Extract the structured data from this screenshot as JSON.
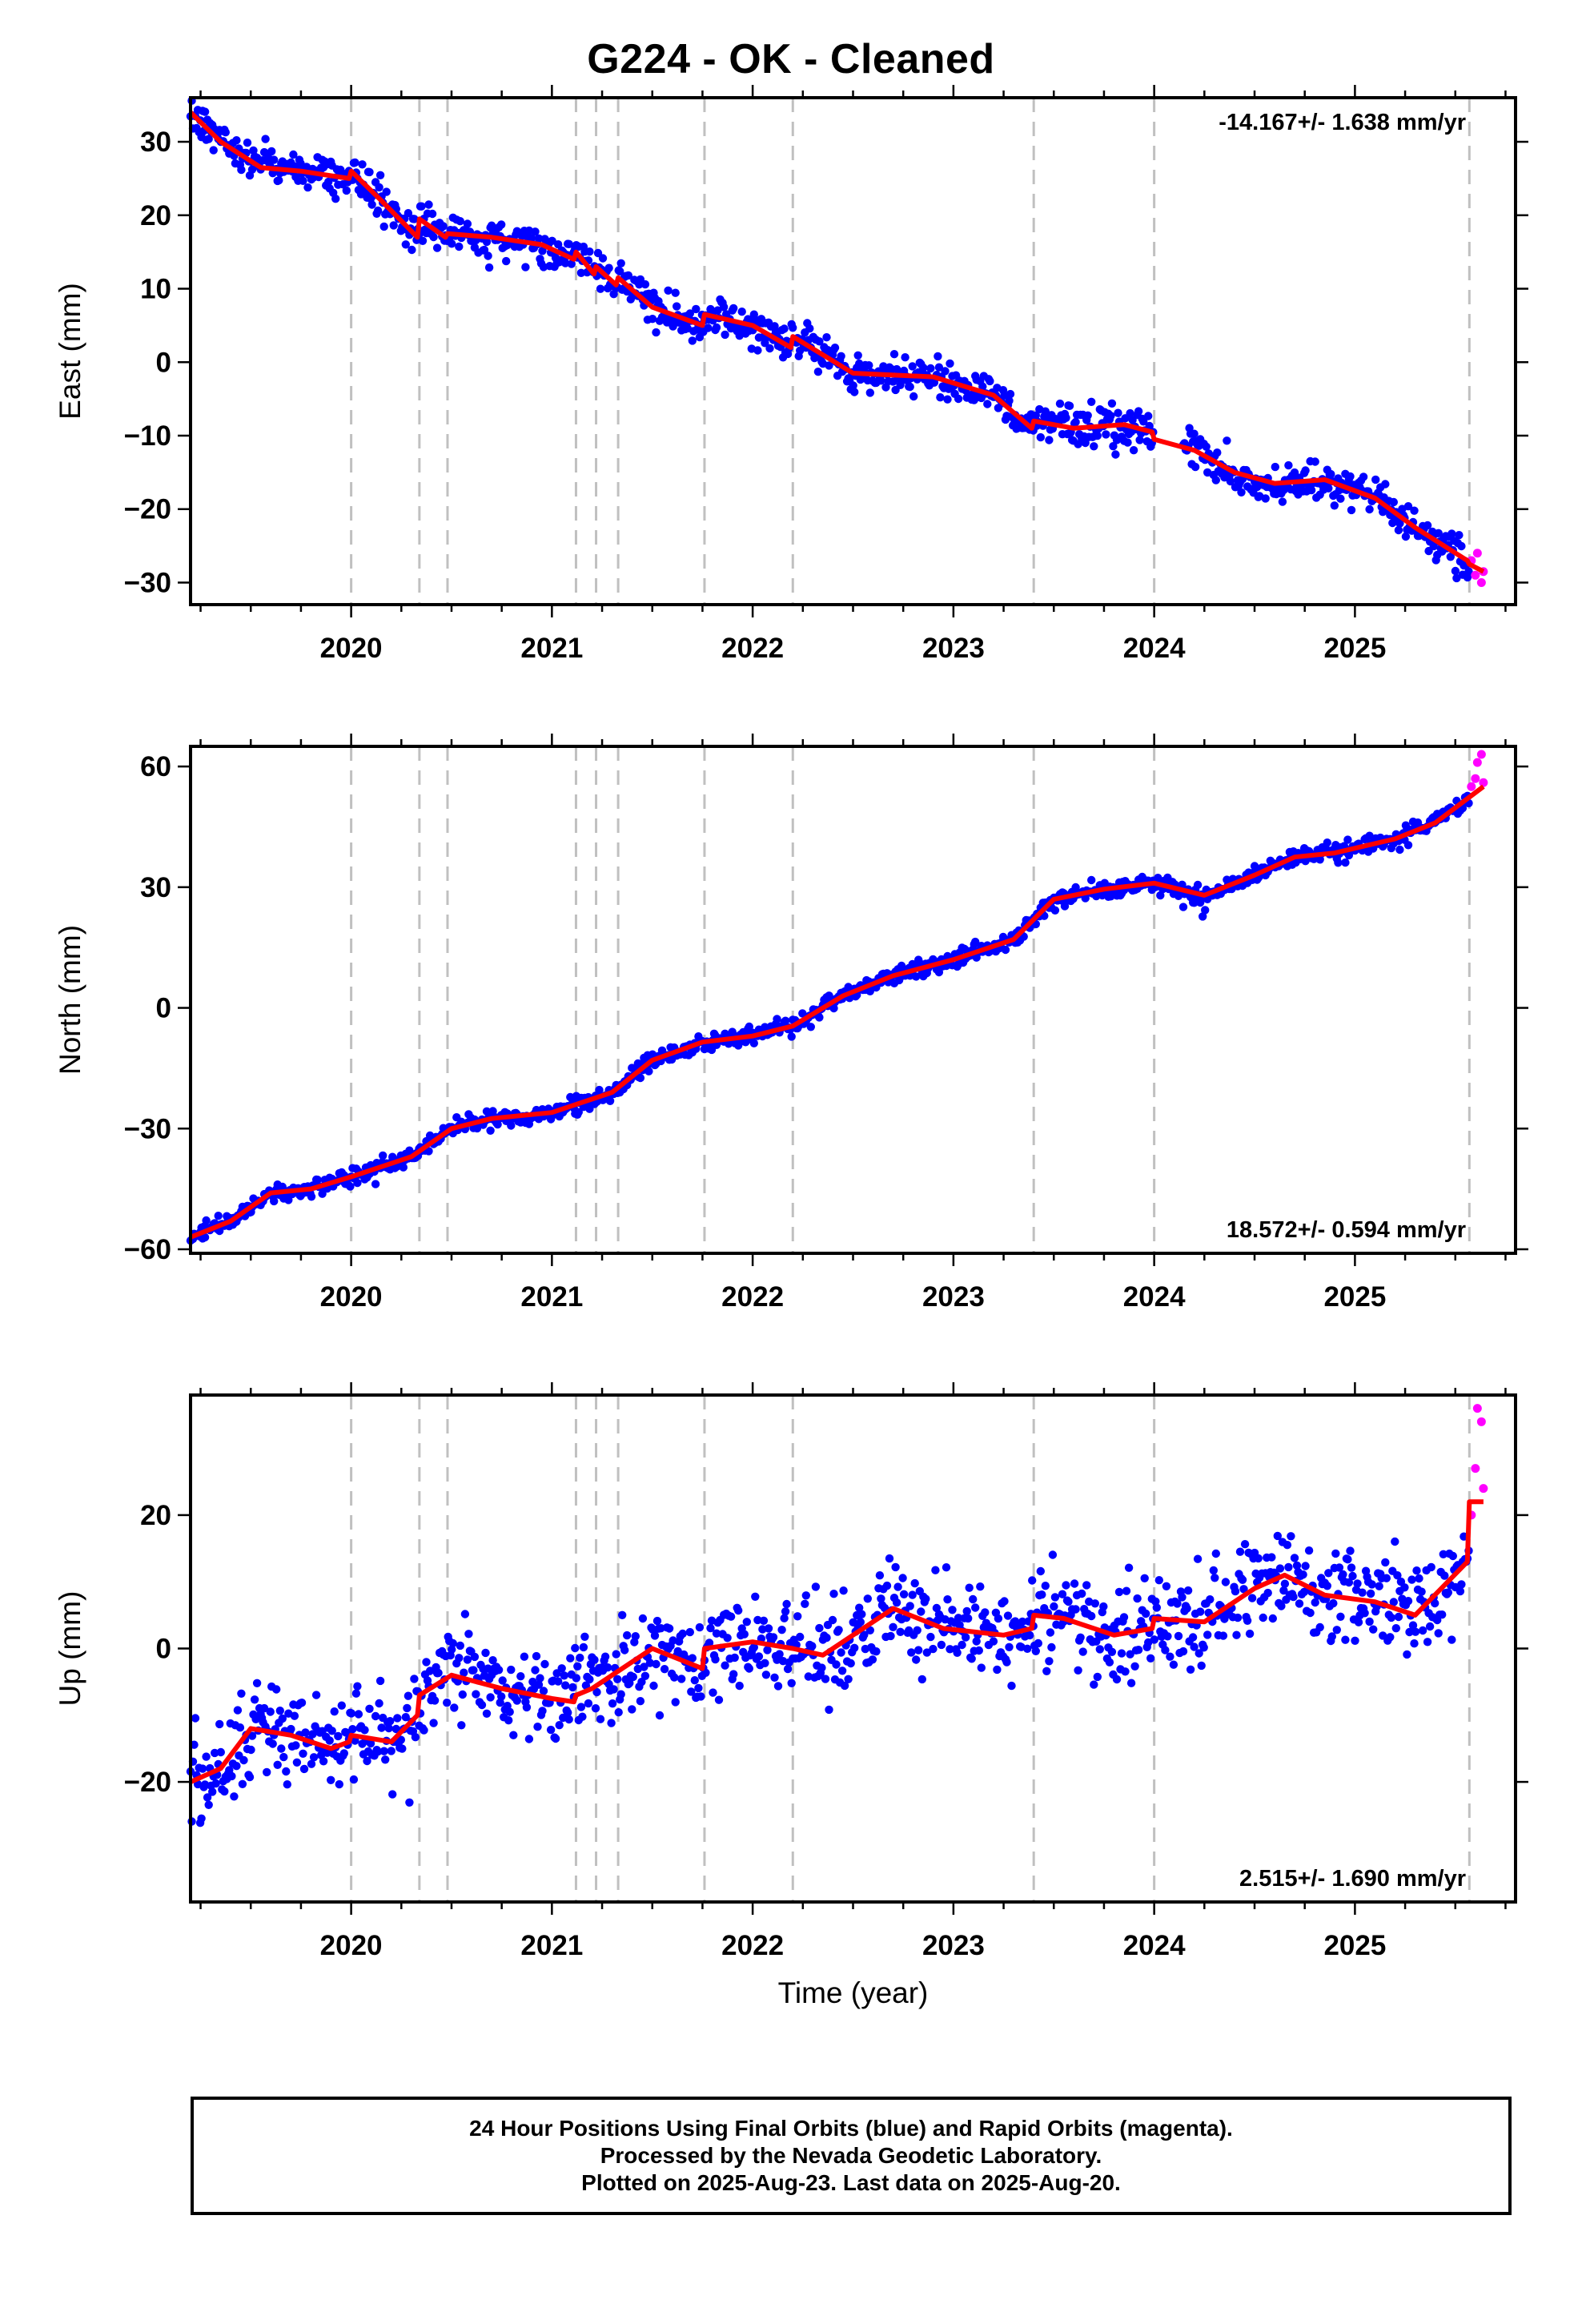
{
  "title": "G224  - OK - Cleaned",
  "footer": {
    "line1": "24 Hour Positions Using Final Orbits (blue) and Rapid Orbits (magenta).",
    "line2": "Processed by the Nevada Geodetic Laboratory.",
    "line3": "Plotted on 2025-Aug-23. Last data on 2025-Aug-20."
  },
  "colors": {
    "final_orbits": "#0000ff",
    "rapid_orbits": "#ff00ff",
    "model": "#ff0000",
    "events": "#c0c0c0",
    "frame": "#000000"
  },
  "chart_data": [
    {
      "type": "scatter",
      "ylabel": "East (mm)",
      "xlabel": "",
      "xlim": [
        2019.2,
        2025.8
      ],
      "ylim": [
        -33,
        36
      ],
      "xticks": [
        "2020",
        "2021",
        "2022",
        "2023",
        "2024",
        "2025"
      ],
      "yticks": [
        "30",
        "20",
        "10",
        "0",
        "−10",
        "−20",
        "−30"
      ],
      "ytick_values": [
        30,
        20,
        10,
        0,
        -10,
        -20,
        -30
      ],
      "rate": "-14.167+/- 1.638 mm/yr",
      "rate_position": "top-right",
      "grid": false,
      "event_lines": [
        2020.0,
        2020.34,
        2020.48,
        2021.12,
        2021.22,
        2021.33,
        2021.76,
        2022.2,
        2023.4,
        2024.0,
        2025.57
      ],
      "model": {
        "x": [
          2019.2,
          2019.35,
          2019.55,
          2019.75,
          2019.99,
          2020.0,
          2020.15,
          2020.33,
          2020.34,
          2020.47,
          2020.48,
          2020.7,
          2020.95,
          2021.11,
          2021.12,
          2021.21,
          2021.22,
          2021.32,
          2021.33,
          2021.5,
          2021.75,
          2021.76,
          2022.0,
          2022.19,
          2022.2,
          2022.5,
          2022.9,
          2023.2,
          2023.39,
          2023.4,
          2023.6,
          2023.85,
          2023.99,
          2024.0,
          2024.2,
          2024.4,
          2024.6,
          2024.85,
          2025.1,
          2025.3,
          2025.56,
          2025.57,
          2025.64
        ],
        "y": [
          34,
          30,
          26.5,
          26,
          25,
          26,
          22,
          17,
          19.5,
          17,
          17.5,
          17,
          16,
          14,
          15,
          12,
          13,
          10.5,
          11.5,
          7.5,
          5,
          6.5,
          5,
          2,
          3.5,
          -1.5,
          -2,
          -4.5,
          -9,
          -8,
          -9,
          -8.5,
          -9.5,
          -10.5,
          -12,
          -15,
          -16.5,
          -16,
          -18.5,
          -22.5,
          -27,
          -27.5,
          -28.5
        ],
        "note": "piecewise fit with offsets at event epochs"
      },
      "final_orbit_series": {
        "name": "Final Orbits",
        "x_range": [
          2019.2,
          2025.57
        ],
        "scatter_sd_mm": 1.3,
        "data_gap": [
          2024.0,
          2024.14
        ],
        "sample_every_days": 1
      },
      "rapid_orbit_series": {
        "name": "Rapid Orbits",
        "x": [
          2025.58,
          2025.6,
          2025.61,
          2025.63,
          2025.64
        ],
        "y": [
          -27,
          -29,
          -26,
          -30,
          -28.5
        ]
      }
    },
    {
      "type": "scatter",
      "ylabel": "North (mm)",
      "xlabel": "",
      "xlim": [
        2019.2,
        2025.8
      ],
      "ylim": [
        -61,
        65
      ],
      "xticks": [
        "2020",
        "2021",
        "2022",
        "2023",
        "2024",
        "2025"
      ],
      "yticks": [
        "60",
        "30",
        "0",
        "−30",
        "−60"
      ],
      "ytick_values": [
        60,
        30,
        0,
        -30,
        -60
      ],
      "rate": "18.572+/- 0.594 mm/yr",
      "rate_position": "bottom-right",
      "grid": false,
      "event_lines": [
        2020.0,
        2020.34,
        2020.48,
        2021.12,
        2021.22,
        2021.33,
        2021.76,
        2022.2,
        2023.4,
        2024.0,
        2025.57
      ],
      "model": {
        "x": [
          2019.2,
          2019.4,
          2019.6,
          2019.8,
          2020.0,
          2020.3,
          2020.5,
          2020.7,
          2021.0,
          2021.3,
          2021.5,
          2021.75,
          2022.0,
          2022.2,
          2022.45,
          2022.7,
          2023.0,
          2023.3,
          2023.5,
          2023.75,
          2024.0,
          2024.25,
          2024.5,
          2024.7,
          2024.9,
          2025.2,
          2025.4,
          2025.64
        ],
        "y": [
          -57,
          -53,
          -46,
          -45,
          -42,
          -37,
          -30,
          -27.5,
          -26,
          -21,
          -13,
          -8.5,
          -7,
          -4.5,
          3,
          8,
          12,
          17,
          27,
          29.5,
          31,
          28,
          33,
          37.5,
          38.5,
          42,
          46,
          55
        ],
        "note": "piecewise fit"
      },
      "final_orbit_series": {
        "name": "Final Orbits",
        "x_range": [
          2019.2,
          2025.57
        ],
        "scatter_sd_mm": 1.1,
        "data_gap": [],
        "sample_every_days": 1
      },
      "rapid_orbit_series": {
        "name": "Rapid Orbits",
        "x": [
          2025.58,
          2025.6,
          2025.61,
          2025.63,
          2025.64
        ],
        "y": [
          55,
          57,
          61,
          63,
          56
        ]
      }
    },
    {
      "type": "scatter",
      "ylabel": "Up (mm)",
      "xlabel": "Time (year)",
      "xlim": [
        2019.2,
        2025.8
      ],
      "ylim": [
        -38,
        38
      ],
      "xticks": [
        "2020",
        "2021",
        "2022",
        "2023",
        "2024",
        "2025"
      ],
      "yticks": [
        "20",
        "0",
        "−20"
      ],
      "ytick_values": [
        20,
        0,
        -20
      ],
      "rate": "2.515+/- 1.690 mm/yr",
      "rate_position": "bottom-right",
      "grid": false,
      "event_lines": [
        2020.0,
        2020.34,
        2020.48,
        2021.12,
        2021.22,
        2021.33,
        2021.76,
        2022.2,
        2023.4,
        2024.0,
        2025.57
      ],
      "model": {
        "x": [
          2019.2,
          2019.35,
          2019.5,
          2019.7,
          2019.9,
          2019.99,
          2020.0,
          2020.2,
          2020.33,
          2020.34,
          2020.5,
          2020.75,
          2021.0,
          2021.11,
          2021.12,
          2021.2,
          2021.35,
          2021.5,
          2021.75,
          2021.76,
          2022.0,
          2022.2,
          2022.35,
          2022.5,
          2022.7,
          2022.95,
          2023.25,
          2023.39,
          2023.4,
          2023.55,
          2023.8,
          2023.99,
          2024.0,
          2024.25,
          2024.5,
          2024.65,
          2024.85,
          2025.1,
          2025.3,
          2025.56,
          2025.57,
          2025.64
        ],
        "y": [
          -20,
          -18,
          -12,
          -13,
          -15,
          -14,
          -13,
          -14,
          -10,
          -7,
          -4,
          -6,
          -7.5,
          -8,
          -7,
          -6,
          -3,
          0,
          -3,
          0,
          1,
          0,
          -1,
          2,
          6,
          3,
          2,
          3,
          5,
          4.5,
          2,
          3,
          4.5,
          4,
          9,
          11,
          8,
          7,
          5,
          13,
          22,
          22
        ],
        "note": "piecewise fit"
      },
      "final_orbit_series": {
        "name": "Final Orbits",
        "x_range": [
          2019.2,
          2025.57
        ],
        "scatter_sd_mm": 3.6,
        "data_gap": [],
        "sample_every_days": 1
      },
      "rapid_orbit_series": {
        "name": "Rapid Orbits",
        "x": [
          2025.58,
          2025.6,
          2025.61,
          2025.63,
          2025.64
        ],
        "y": [
          20,
          27,
          36,
          34,
          24
        ]
      }
    }
  ]
}
